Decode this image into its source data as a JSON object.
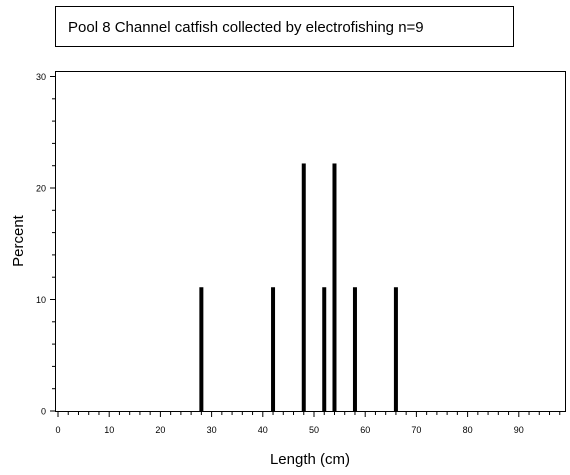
{
  "chart_data": {
    "type": "bar",
    "title": "Pool 8 Channel catfish collected by electrofishing n=9",
    "xlabel": "Length (cm)",
    "ylabel": "Percent",
    "xlim": [
      0,
      99
    ],
    "ylim": [
      0,
      30
    ],
    "xticks": [
      0,
      10,
      20,
      30,
      40,
      50,
      60,
      70,
      80,
      90
    ],
    "yticks": [
      0,
      10,
      20,
      30
    ],
    "x": [
      28,
      42,
      48,
      52,
      54,
      58,
      66
    ],
    "values": [
      11.1,
      11.1,
      22.2,
      11.1,
      22.2,
      11.1,
      11.1
    ],
    "color": "#000000",
    "grid": false
  }
}
